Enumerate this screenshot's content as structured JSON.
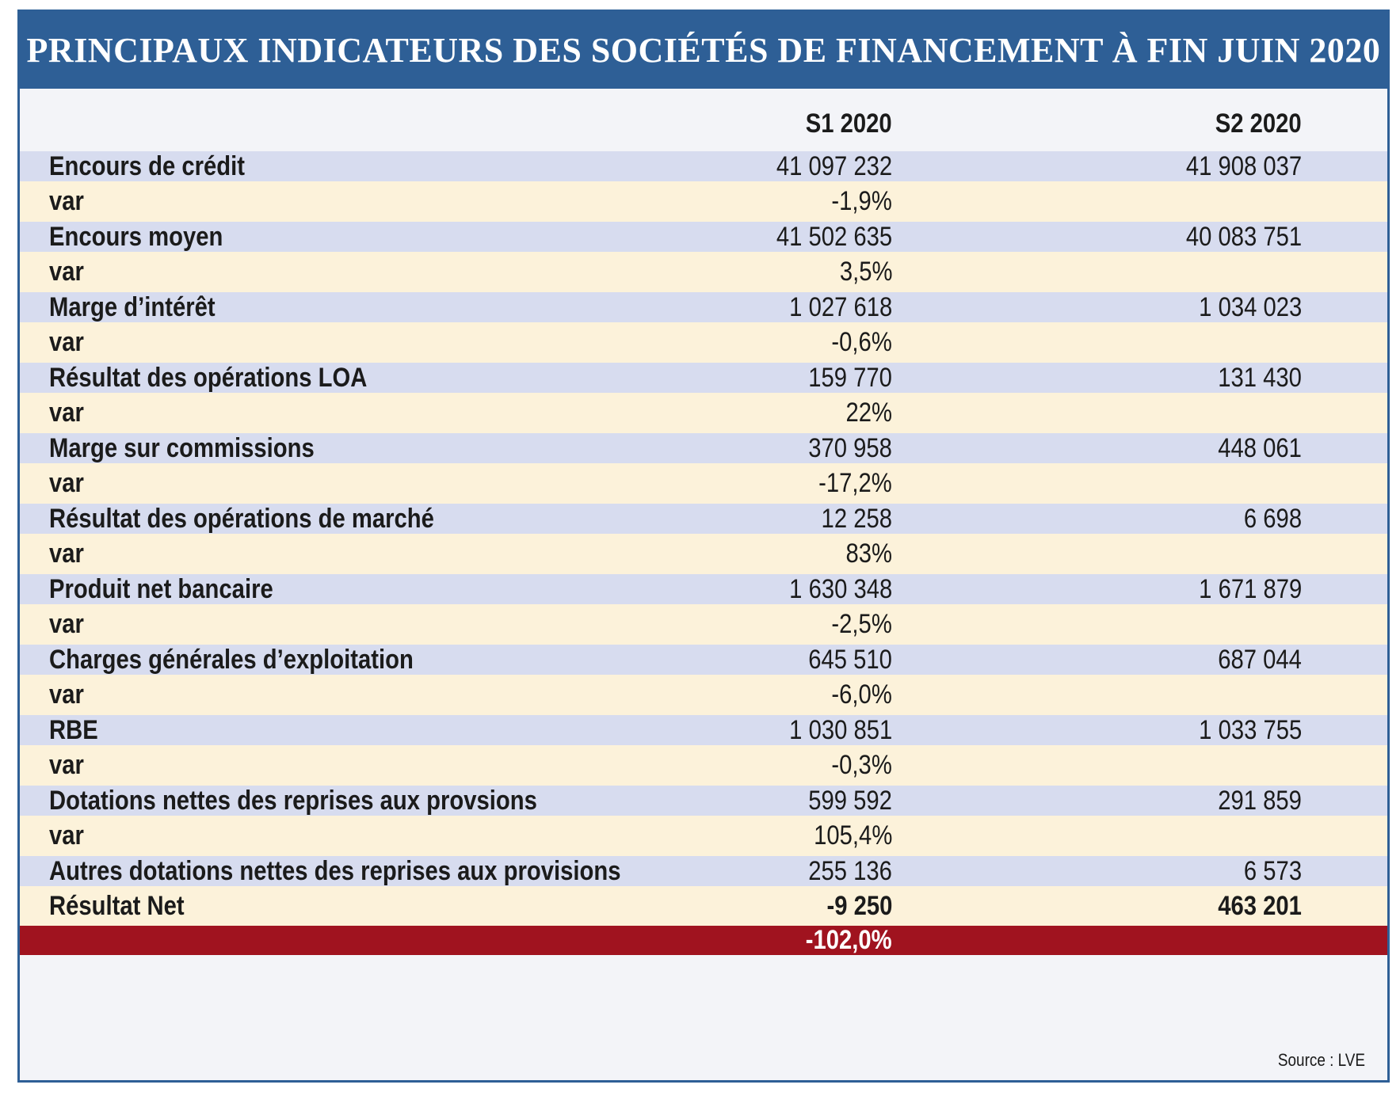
{
  "title": "PRINCIPAUX INDICATEURS DES SOCIÉTÉS DE FINANCEMENT À FIN JUIN 2020",
  "columns": {
    "label": "",
    "s1": "S1 2020",
    "s2": "S2 2020"
  },
  "rows": [
    {
      "label": "Encours de crédit",
      "s1": "41 097 232",
      "s2": "41 908 037"
    },
    {
      "label": "var",
      "s1": "-1,9%",
      "s2": ""
    },
    {
      "label": "Encours moyen",
      "s1": "41 502 635",
      "s2": "40 083 751"
    },
    {
      "label": "var",
      "s1": "3,5%",
      "s2": ""
    },
    {
      "label": "Marge d’intérêt",
      "s1": "1 027 618",
      "s2": "1 034 023"
    },
    {
      "label": "var",
      "s1": "-0,6%",
      "s2": ""
    },
    {
      "label": "Résultat des opérations LOA",
      "s1": "159 770",
      "s2": "131 430"
    },
    {
      "label": "var",
      "s1": "22%",
      "s2": ""
    },
    {
      "label": "Marge sur commissions",
      "s1": "370 958",
      "s2": "448 061"
    },
    {
      "label": "var",
      "s1": "-17,2%",
      "s2": ""
    },
    {
      "label": "Résultat des opérations de marché",
      "s1": "12 258",
      "s2": "6 698"
    },
    {
      "label": "var",
      "s1": "83%",
      "s2": ""
    },
    {
      "label": "Produit net bancaire",
      "s1": "1 630 348",
      "s2": "1 671 879"
    },
    {
      "label": "var",
      "s1": "-2,5%",
      "s2": ""
    },
    {
      "label": "Charges générales d’exploitation",
      "s1": "645 510",
      "s2": "687 044"
    },
    {
      "label": "var",
      "s1": "-6,0%",
      "s2": ""
    },
    {
      "label": "RBE",
      "s1": "1 030 851",
      "s2": "1 033 755"
    },
    {
      "label": "var",
      "s1": "-0,3%",
      "s2": ""
    },
    {
      "label": "Dotations nettes des reprises aux provsions",
      "s1": "599 592",
      "s2": "291 859"
    },
    {
      "label": "var",
      "s1": "105,4%",
      "s2": ""
    },
    {
      "label": "Autres dotations nettes des reprises aux provisions",
      "s1": "255 136",
      "s2": "6 573"
    },
    {
      "label": "Résultat Net",
      "s1": "-9 250",
      "s2": "463 201"
    },
    {
      "label": "",
      "s1": "-102,0%",
      "s2": ""
    }
  ],
  "source": "Source : LVE",
  "colors": {
    "title_bg": "#2e5f96",
    "main_row_bg": "#d7dcef",
    "var_row_bg": "#fcf2da",
    "highlight_row_bg": "#a0131f",
    "page_bg": "#f3f4f8"
  }
}
